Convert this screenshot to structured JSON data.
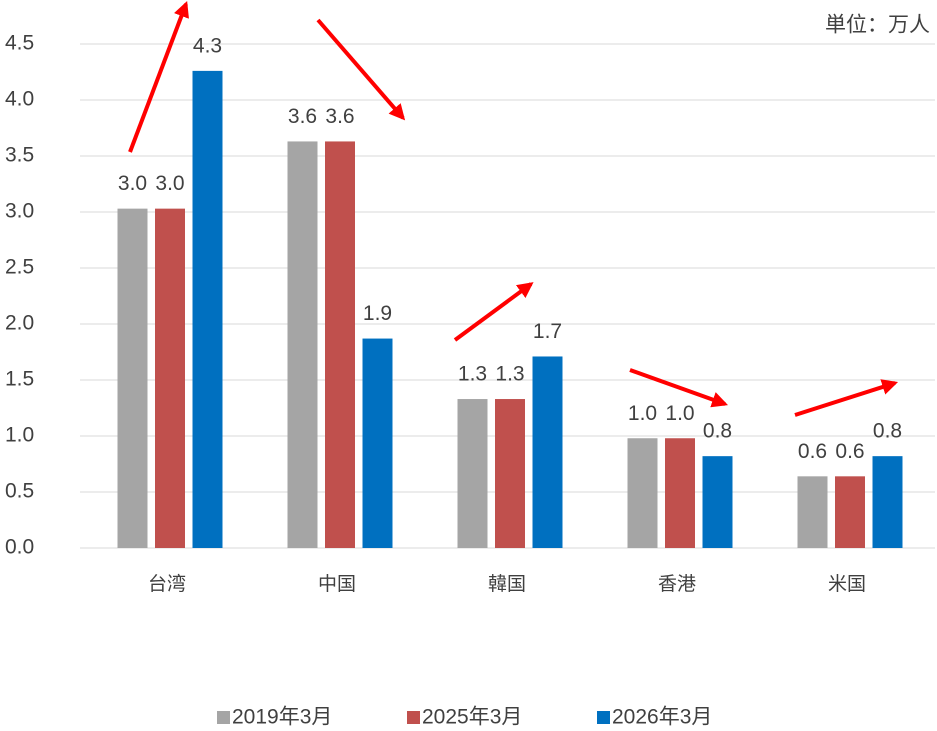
{
  "chart_data": {
    "type": "bar",
    "annotation": "単位：万人",
    "categories": [
      "台湾",
      "中国",
      "韓国",
      "香港",
      "米国"
    ],
    "series": [
      {
        "name": "2019年3月",
        "color": "#a5a5a5",
        "values": [
          3.03,
          3.63,
          1.33,
          0.98,
          0.64
        ],
        "value_labels": [
          "3.0",
          "3.6",
          "1.3",
          "1.0",
          "0.6"
        ]
      },
      {
        "name": "2025年3月",
        "color": "#c0504d",
        "values": [
          3.03,
          3.63,
          1.33,
          0.98,
          0.64
        ],
        "value_labels": [
          "3.0",
          "3.6",
          "1.3",
          "1.0",
          "0.6"
        ]
      },
      {
        "name": "2026年3月",
        "color": "#0070c0",
        "values": [
          4.26,
          1.87,
          1.71,
          0.82,
          0.82
        ],
        "value_labels": [
          "4.3",
          "1.9",
          "1.7",
          "0.8",
          "0.8"
        ]
      }
    ],
    "ylim": [
      0,
      4.5
    ],
    "yticks": [
      {
        "value": 0,
        "label": "0.0"
      },
      0.5,
      {
        "value": 1,
        "label": "1.0"
      },
      1.5,
      {
        "value": 2,
        "label": "2.0"
      },
      2.5,
      {
        "value": 3,
        "label": "3.0"
      },
      3.5,
      {
        "value": 4,
        "label": "4.0"
      },
      4.5
    ],
    "grid": true,
    "legend": "bottom"
  }
}
